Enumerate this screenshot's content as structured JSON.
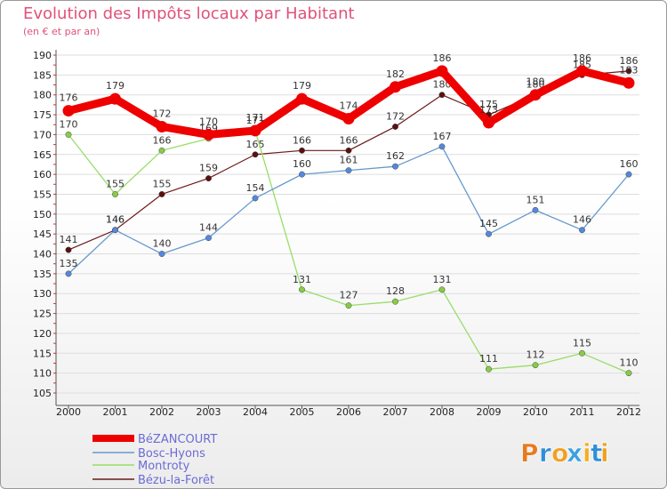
{
  "chart_data": {
    "type": "line",
    "title": "Evolution des Impôts locaux par Habitant",
    "subtitle": "(en € et par an)",
    "x": [
      "2000",
      "2001",
      "2002",
      "2003",
      "2004",
      "2005",
      "2006",
      "2007",
      "2008",
      "2009",
      "2010",
      "2011",
      "2012"
    ],
    "ylim": [
      105,
      190
    ],
    "yticks": [
      105,
      110,
      115,
      120,
      125,
      130,
      135,
      140,
      145,
      150,
      155,
      160,
      165,
      170,
      175,
      180,
      185,
      190
    ],
    "series": [
      {
        "name": "Bézu-la-Forêt",
        "color": "#6b1a1a",
        "marker": "#5a1010",
        "width": 1.2,
        "radius": 3.2,
        "values": [
          141,
          146,
          155,
          159,
          165,
          166,
          166,
          172,
          180,
          175,
          180,
          185,
          186
        ]
      },
      {
        "name": "Montroty",
        "color": "#99dd66",
        "marker": "#88cc44",
        "width": 1.3,
        "radius": 3.2,
        "values": [
          170,
          155,
          166,
          169,
          171,
          131,
          127,
          128,
          131,
          111,
          112,
          115,
          110
        ]
      },
      {
        "name": "Bosc-Hyons",
        "color": "#6699cc",
        "marker": "#5588dd",
        "width": 1.3,
        "radius": 3.2,
        "values": [
          135,
          146,
          140,
          144,
          154,
          160,
          161,
          162,
          167,
          145,
          151,
          146,
          160
        ]
      },
      {
        "name": "BéZANCOURT",
        "color": "#ee0000",
        "marker": "#ee0000",
        "width": 9,
        "radius": 6.5,
        "values": [
          176,
          179,
          172,
          170,
          171,
          179,
          174,
          182,
          186,
          173,
          180,
          186,
          183
        ]
      }
    ],
    "legend": [
      "BéZANCOURT",
      "Bosc-Hyons",
      "Montroty",
      "Bézu-la-Forêt"
    ],
    "legend_colors": [
      "#ee0000",
      "#6699cc",
      "#99dd66",
      "#6b1a1a"
    ],
    "legend_position": "bottom-left"
  },
  "logo": {
    "letters": [
      "P",
      "r",
      "o",
      "x",
      "i",
      "t",
      "i"
    ],
    "colors": [
      "#e87a1e",
      "#2e8fd6",
      "#f0a020",
      "#3aa0e0",
      "#f0b020",
      "#2e8fd6",
      "#f0a020"
    ]
  }
}
